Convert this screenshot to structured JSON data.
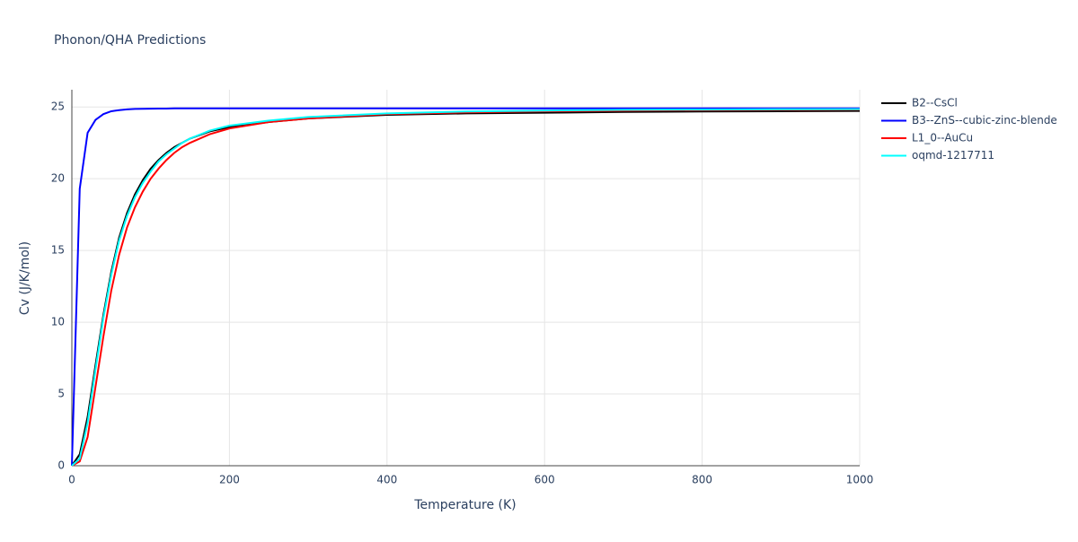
{
  "chart_data": {
    "type": "line",
    "title": "Phonon/QHA Predictions",
    "x_label": "Temperature (K)",
    "y_label": "Cv (J/K/mol)",
    "x": [
      0,
      10,
      20,
      30,
      40,
      50,
      60,
      70,
      80,
      90,
      100,
      110,
      120,
      130,
      140,
      150,
      175,
      200,
      250,
      300,
      400,
      500,
      600,
      700,
      800,
      900,
      1000
    ],
    "series": [
      {
        "name": "B2--CsCl",
        "color": "#000000",
        "values": [
          0,
          0.8,
          3.4,
          7.0,
          10.5,
          13.5,
          15.9,
          17.6,
          18.9,
          19.9,
          20.7,
          21.3,
          21.8,
          22.2,
          22.5,
          22.8,
          23.3,
          23.6,
          23.95,
          24.2,
          24.45,
          24.55,
          24.6,
          24.65,
          24.68,
          24.7,
          24.72
        ]
      },
      {
        "name": "B3--ZnS--cubic-zinc-blende",
        "color": "#0000ff",
        "values": [
          0,
          19.3,
          23.2,
          24.1,
          24.5,
          24.7,
          24.78,
          24.83,
          24.86,
          24.87,
          24.88,
          24.89,
          24.89,
          24.9,
          24.9,
          24.9,
          24.9,
          24.9,
          24.9,
          24.9,
          24.9,
          24.9,
          24.9,
          24.9,
          24.9,
          24.9,
          24.9
        ]
      },
      {
        "name": "L1_0--AuCu",
        "color": "#ff0000",
        "values": [
          0,
          0.3,
          2.0,
          5.5,
          9.0,
          12.2,
          14.7,
          16.6,
          18.0,
          19.1,
          20.0,
          20.7,
          21.3,
          21.8,
          22.2,
          22.5,
          23.1,
          23.5,
          23.95,
          24.2,
          24.5,
          24.62,
          24.7,
          24.75,
          24.78,
          24.8,
          24.82
        ]
      },
      {
        "name": "oqmd-1217711",
        "color": "#00ffff",
        "values": [
          0,
          0.5,
          3.0,
          6.7,
          10.3,
          13.3,
          15.7,
          17.4,
          18.7,
          19.7,
          20.5,
          21.2,
          21.7,
          22.1,
          22.5,
          22.8,
          23.35,
          23.7,
          24.05,
          24.3,
          24.55,
          24.68,
          24.75,
          24.8,
          24.82,
          24.84,
          24.85
        ]
      }
    ],
    "xlim": [
      0,
      1000
    ],
    "ylim": [
      0,
      26.2
    ],
    "xticks": [
      0,
      200,
      400,
      600,
      800,
      1000
    ],
    "yticks": [
      0,
      5,
      10,
      15,
      20,
      25
    ],
    "grid": true
  }
}
